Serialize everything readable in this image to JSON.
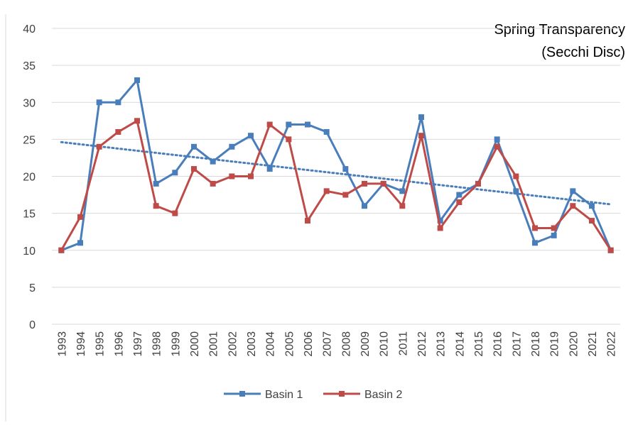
{
  "chart_data": {
    "type": "line",
    "annotation": [
      "Spring Transparency",
      "(Secchi Disc)"
    ],
    "categories": [
      "1993",
      "1994",
      "1995",
      "1996",
      "1997",
      "1998",
      "1999",
      "2000",
      "2001",
      "2002",
      "2003",
      "2004",
      "2005",
      "2006",
      "2007",
      "2008",
      "2009",
      "2010",
      "2011",
      "2012",
      "2013",
      "2014",
      "2015",
      "2016",
      "2017",
      "2018",
      "2019",
      "2020",
      "2021",
      "2022"
    ],
    "series": [
      {
        "name": "Basin 1",
        "color": "#4a7ebb",
        "values": [
          10,
          11,
          30,
          30,
          33,
          19,
          20.5,
          24,
          22,
          24,
          25.5,
          21,
          27,
          27,
          26,
          21,
          16,
          19,
          18,
          28,
          14,
          17.5,
          19,
          25,
          18,
          11,
          12,
          18,
          16,
          10
        ]
      },
      {
        "name": "Basin 2",
        "color": "#be4b48",
        "values": [
          10,
          14.5,
          24,
          26,
          27.5,
          16,
          15,
          21,
          19,
          20,
          20,
          27,
          25,
          14,
          18,
          17.5,
          19,
          19,
          16,
          25.5,
          13,
          16.5,
          19,
          24,
          20,
          13,
          13,
          16,
          14,
          10
        ]
      }
    ],
    "trendline": {
      "series": 0,
      "color": "#4a7ebb",
      "style": "dotted"
    },
    "ylim": [
      0,
      40
    ],
    "yticks": [
      0,
      5,
      10,
      15,
      20,
      25,
      30,
      35,
      40
    ],
    "grid": true,
    "legend": "bottom"
  }
}
